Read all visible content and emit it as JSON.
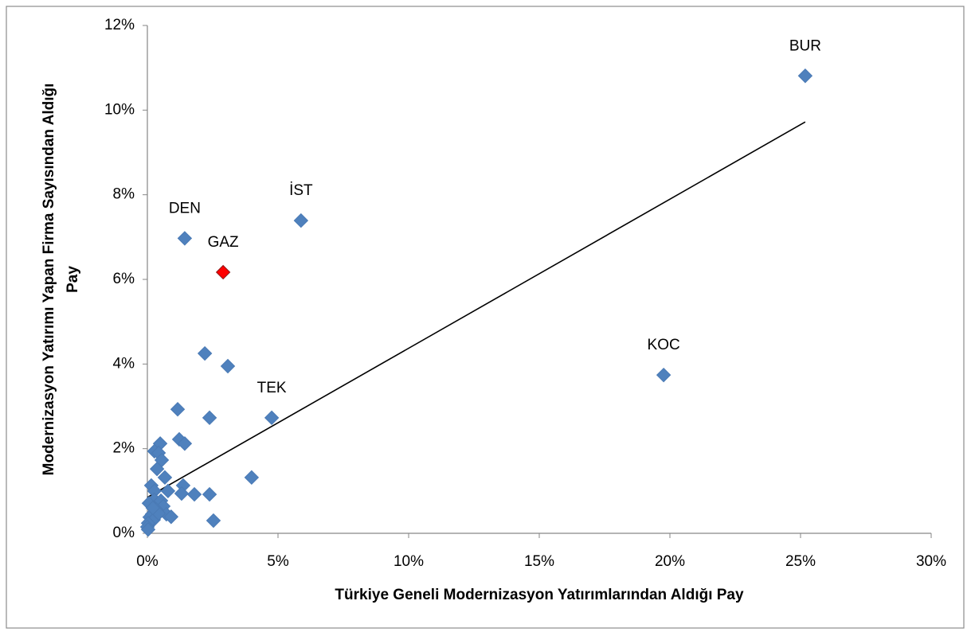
{
  "chart_data": {
    "type": "scatter",
    "xlabel": "Türkiye Geneli Modernizasyon Yatırımlarından Aldığı Pay",
    "ylabel": [
      "Modernizasyon Yatırımı Yapan Firma Sayısından Aldığı",
      "Pay"
    ],
    "x": [
      25.18,
      5.88,
      1.43,
      2.9,
      19.76,
      4.76,
      2.2,
      3.08,
      1.16,
      2.38,
      1.22,
      1.43,
      0.49,
      0.27,
      0.43,
      0.55,
      0.37,
      0.67,
      3.99,
      0.15,
      1.37,
      0.27,
      0.79,
      1.31,
      1.8,
      2.38,
      0.27,
      0.52,
      0.06,
      0.61,
      0.34,
      0.18,
      0.73,
      0.91,
      0.09,
      0.24,
      2.53,
      0.03,
      0.0,
      0.03,
      0.43,
      0.21
    ],
    "y": [
      10.81,
      7.39,
      6.97,
      6.17,
      3.74,
      2.73,
      4.25,
      3.95,
      2.93,
      2.73,
      2.22,
      2.12,
      2.12,
      1.94,
      1.9,
      1.73,
      1.52,
      1.32,
      1.32,
      1.13,
      1.13,
      1.0,
      1.0,
      0.94,
      0.92,
      0.92,
      0.79,
      0.77,
      0.71,
      0.64,
      0.56,
      0.45,
      0.45,
      0.39,
      0.38,
      0.32,
      0.3,
      0.24,
      0.15,
      0.09,
      0.47,
      0.6
    ],
    "labels": [
      "BUR",
      "İST",
      "DEN",
      "GAZ",
      "KOC",
      "TEK",
      null,
      null,
      null,
      null,
      null,
      null,
      null,
      null,
      null,
      null,
      null,
      null,
      null,
      null,
      null,
      null,
      null,
      null,
      null,
      null,
      null,
      null,
      null,
      null,
      null,
      null,
      null,
      null,
      null,
      null,
      null,
      null,
      null,
      null,
      null,
      null
    ],
    "colors": [
      "#4f81bd",
      "#4f81bd",
      "#4f81bd",
      "#ff0000",
      "#4f81bd",
      "#4f81bd",
      "#4f81bd",
      "#4f81bd",
      "#4f81bd",
      "#4f81bd",
      "#4f81bd",
      "#4f81bd",
      "#4f81bd",
      "#4f81bd",
      "#4f81bd",
      "#4f81bd",
      "#4f81bd",
      "#4f81bd",
      "#4f81bd",
      "#4f81bd",
      "#4f81bd",
      "#4f81bd",
      "#4f81bd",
      "#4f81bd",
      "#4f81bd",
      "#4f81bd",
      "#4f81bd",
      "#4f81bd",
      "#4f81bd",
      "#4f81bd",
      "#4f81bd",
      "#4f81bd",
      "#4f81bd",
      "#4f81bd",
      "#4f81bd",
      "#4f81bd",
      "#4f81bd",
      "#4f81bd",
      "#4f81bd",
      "#4f81bd",
      "#4f81bd",
      "#4f81bd"
    ],
    "trendline": {
      "x": [
        0,
        25.18
      ],
      "y": [
        0.85,
        9.72
      ],
      "color": "#000000"
    },
    "xlim": [
      0,
      30
    ],
    "xticks": [
      {
        "value": 0,
        "label": "0%"
      },
      {
        "value": 5,
        "label": "5%"
      },
      {
        "value": 10,
        "label": "10%"
      },
      {
        "value": 15,
        "label": "15%"
      },
      {
        "value": 20,
        "label": "20%"
      },
      {
        "value": 25,
        "label": "25%"
      },
      {
        "value": 30,
        "label": "30%"
      }
    ],
    "ylim": [
      0,
      12
    ],
    "yticks": [
      {
        "value": 0,
        "label": "0%"
      },
      {
        "value": 2,
        "label": "2%"
      },
      {
        "value": 4,
        "label": "4%"
      },
      {
        "value": 6,
        "label": "6%"
      },
      {
        "value": 8,
        "label": "8%"
      },
      {
        "value": 10,
        "label": "10%"
      },
      {
        "value": 12,
        "label": "12%"
      }
    ]
  }
}
